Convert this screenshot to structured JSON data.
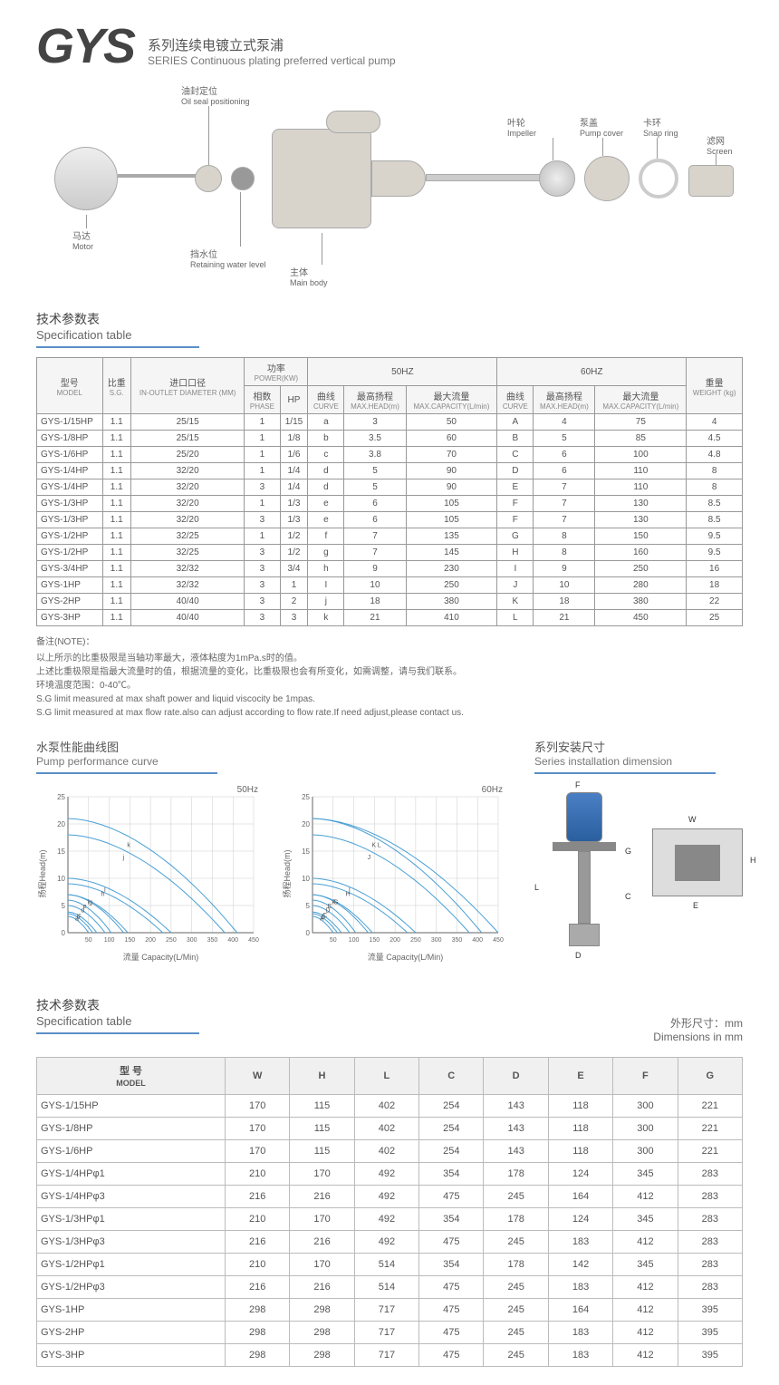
{
  "header": {
    "logo": "GYS",
    "title_cn": "系列连续电镀立式泵浦",
    "title_en": "SERIES  Continuous plating preferred vertical pump"
  },
  "diagram_labels": {
    "oil_seal": {
      "cn": "油封定位",
      "en": "Oil seal positioning"
    },
    "motor": {
      "cn": "马达",
      "en": "Motor"
    },
    "water": {
      "cn": "挡水位",
      "en": "Retaining water level"
    },
    "main": {
      "cn": "主体",
      "en": "Main body"
    },
    "impeller": {
      "cn": "叶轮",
      "en": "Impeller"
    },
    "cover": {
      "cn": "泵盖",
      "en": "Pump cover"
    },
    "snap": {
      "cn": "卡环",
      "en": "Snap ring"
    },
    "screen": {
      "cn": "滤网",
      "en": "Screen"
    }
  },
  "spec_section": {
    "title_cn": "技术参数表",
    "title_en": "Specification table"
  },
  "spec_headers": {
    "model": {
      "cn": "型号",
      "en": "MODEL"
    },
    "sg": {
      "cn": "比重",
      "en": "S.G."
    },
    "inlet": {
      "cn": "进口口径",
      "en": "IN-OUTLET DIAMETER (MM)"
    },
    "power": {
      "cn": "功率",
      "en": "POWER(KW)"
    },
    "phase": {
      "cn": "相数",
      "en": "PHASE"
    },
    "hp": "HP",
    "hz50": "50HZ",
    "hz60": "60HZ",
    "curve": {
      "cn": "曲线",
      "en": "CURVE"
    },
    "maxhead": {
      "cn": "最高扬程",
      "en": "MAX.HEAD(m)"
    },
    "maxcap": {
      "cn": "最大流量",
      "en": "MAX.CAPACITY(L/min)"
    },
    "weight": {
      "cn": "重量",
      "en": "WEIGHT (kg)"
    }
  },
  "spec_rows": [
    [
      "GYS-1/15HP",
      "1.1",
      "25/15",
      "1",
      "1/15",
      "a",
      "3",
      "50",
      "A",
      "4",
      "75",
      "4"
    ],
    [
      "GYS-1/8HP",
      "1.1",
      "25/15",
      "1",
      "1/8",
      "b",
      "3.5",
      "60",
      "B",
      "5",
      "85",
      "4.5"
    ],
    [
      "GYS-1/6HP",
      "1.1",
      "25/20",
      "1",
      "1/6",
      "c",
      "3.8",
      "70",
      "C",
      "6",
      "100",
      "4.8"
    ],
    [
      "GYS-1/4HP",
      "1.1",
      "32/20",
      "1",
      "1/4",
      "d",
      "5",
      "90",
      "D",
      "6",
      "110",
      "8"
    ],
    [
      "GYS-1/4HP",
      "1.1",
      "32/20",
      "3",
      "1/4",
      "d",
      "5",
      "90",
      "E",
      "7",
      "110",
      "8"
    ],
    [
      "GYS-1/3HP",
      "1.1",
      "32/20",
      "1",
      "1/3",
      "e",
      "6",
      "105",
      "F",
      "7",
      "130",
      "8.5"
    ],
    [
      "GYS-1/3HP",
      "1.1",
      "32/20",
      "3",
      "1/3",
      "e",
      "6",
      "105",
      "F",
      "7",
      "130",
      "8.5"
    ],
    [
      "GYS-1/2HP",
      "1.1",
      "32/25",
      "1",
      "1/2",
      "f",
      "7",
      "135",
      "G",
      "8",
      "150",
      "9.5"
    ],
    [
      "GYS-1/2HP",
      "1.1",
      "32/25",
      "3",
      "1/2",
      "g",
      "7",
      "145",
      "H",
      "8",
      "160",
      "9.5"
    ],
    [
      "GYS-3/4HP",
      "1.1",
      "32/32",
      "3",
      "3/4",
      "h",
      "9",
      "230",
      "I",
      "9",
      "250",
      "16"
    ],
    [
      "GYS-1HP",
      "1.1",
      "32/32",
      "3",
      "1",
      "I",
      "10",
      "250",
      "J",
      "10",
      "280",
      "18"
    ],
    [
      "GYS-2HP",
      "1.1",
      "40/40",
      "3",
      "2",
      "j",
      "18",
      "380",
      "K",
      "18",
      "380",
      "22"
    ],
    [
      "GYS-3HP",
      "1.1",
      "40/40",
      "3",
      "3",
      "k",
      "21",
      "410",
      "L",
      "21",
      "450",
      "25"
    ]
  ],
  "notes": {
    "title": "备注(NOTE)：",
    "lines": [
      "以上所示的比重极限是当轴功率最大，液体粘度为1mPa.s时的值。",
      "上述比重极限是指最大流量时的值，根据流量的变化，比重极限也会有所变化，如需调整，请与我们联系。",
      "环境温度范围：0-40℃。",
      "S.G limit measured at max shaft power and liquid viscocity be 1mpas.",
      "S.G limit measured at max flow rate.also can adjust according to flow rate.If need adjust,please contact us."
    ]
  },
  "curve_section": {
    "title_cn": "水泵性能曲线图",
    "title_en": "Pump performance curve"
  },
  "dim_section": {
    "title_cn": "系列安装尺寸",
    "title_en": "Series installation dimension"
  },
  "charts": {
    "chart50": {
      "label": "50Hz",
      "ylabel": "扬程Head(m)",
      "xlabel": "流量 Capacity(L/Min)",
      "yticks": [
        0,
        5,
        10,
        15,
        20,
        25
      ],
      "xticks": [
        50,
        100,
        150,
        200,
        250,
        300,
        350,
        400,
        450
      ],
      "curves_labels": [
        "a",
        "b",
        "c",
        "d",
        "e",
        "f",
        "g",
        "h",
        "I",
        "j",
        "k"
      ],
      "line_color": "#4aa0d5",
      "grid_color": "#ccc"
    },
    "chart60": {
      "label": "60Hz",
      "ylabel": "扬程Head(m)",
      "xlabel": "流量 Capacity(L/Min)",
      "yticks": [
        0,
        5,
        10,
        15,
        20,
        25
      ],
      "xticks": [
        50,
        100,
        150,
        200,
        250,
        300,
        350,
        400,
        450
      ],
      "curves_labels": [
        "A",
        "B",
        "C",
        "D",
        "E",
        "F",
        "G",
        "H",
        "I",
        "J",
        "K",
        "L"
      ],
      "line_color": "#4aa0d5",
      "grid_color": "#ccc"
    }
  },
  "dims_unit": {
    "cn": "外形尺寸：mm",
    "en": "Dimensions in mm"
  },
  "dims_headers": [
    "型 号\nMODEL",
    "W",
    "H",
    "L",
    "C",
    "D",
    "E",
    "F",
    "G"
  ],
  "dims_rows": [
    [
      "GYS-1/15HP",
      "170",
      "115",
      "402",
      "254",
      "143",
      "118",
      "300",
      "221"
    ],
    [
      "GYS-1/8HP",
      "170",
      "115",
      "402",
      "254",
      "143",
      "118",
      "300",
      "221"
    ],
    [
      "GYS-1/6HP",
      "170",
      "115",
      "402",
      "254",
      "143",
      "118",
      "300",
      "221"
    ],
    [
      "GYS-1/4HPφ1",
      "210",
      "170",
      "492",
      "354",
      "178",
      "124",
      "345",
      "283"
    ],
    [
      "GYS-1/4HPφ3",
      "216",
      "216",
      "492",
      "475",
      "245",
      "164",
      "412",
      "283"
    ],
    [
      "GYS-1/3HPφ1",
      "210",
      "170",
      "492",
      "354",
      "178",
      "124",
      "345",
      "283"
    ],
    [
      "GYS-1/3HPφ3",
      "216",
      "216",
      "492",
      "475",
      "245",
      "183",
      "412",
      "283"
    ],
    [
      "GYS-1/2HPφ1",
      "210",
      "170",
      "514",
      "354",
      "178",
      "142",
      "345",
      "283"
    ],
    [
      "GYS-1/2HPφ3",
      "216",
      "216",
      "514",
      "475",
      "245",
      "183",
      "412",
      "283"
    ],
    [
      "GYS-1HP",
      "298",
      "298",
      "717",
      "475",
      "245",
      "164",
      "412",
      "395"
    ],
    [
      "GYS-2HP",
      "298",
      "298",
      "717",
      "475",
      "245",
      "183",
      "412",
      "395"
    ],
    [
      "GYS-3HP",
      "298",
      "298",
      "717",
      "475",
      "245",
      "183",
      "412",
      "395"
    ]
  ],
  "dim_letters": [
    "F",
    "W",
    "H",
    "L",
    "C",
    "G",
    "D",
    "E"
  ]
}
